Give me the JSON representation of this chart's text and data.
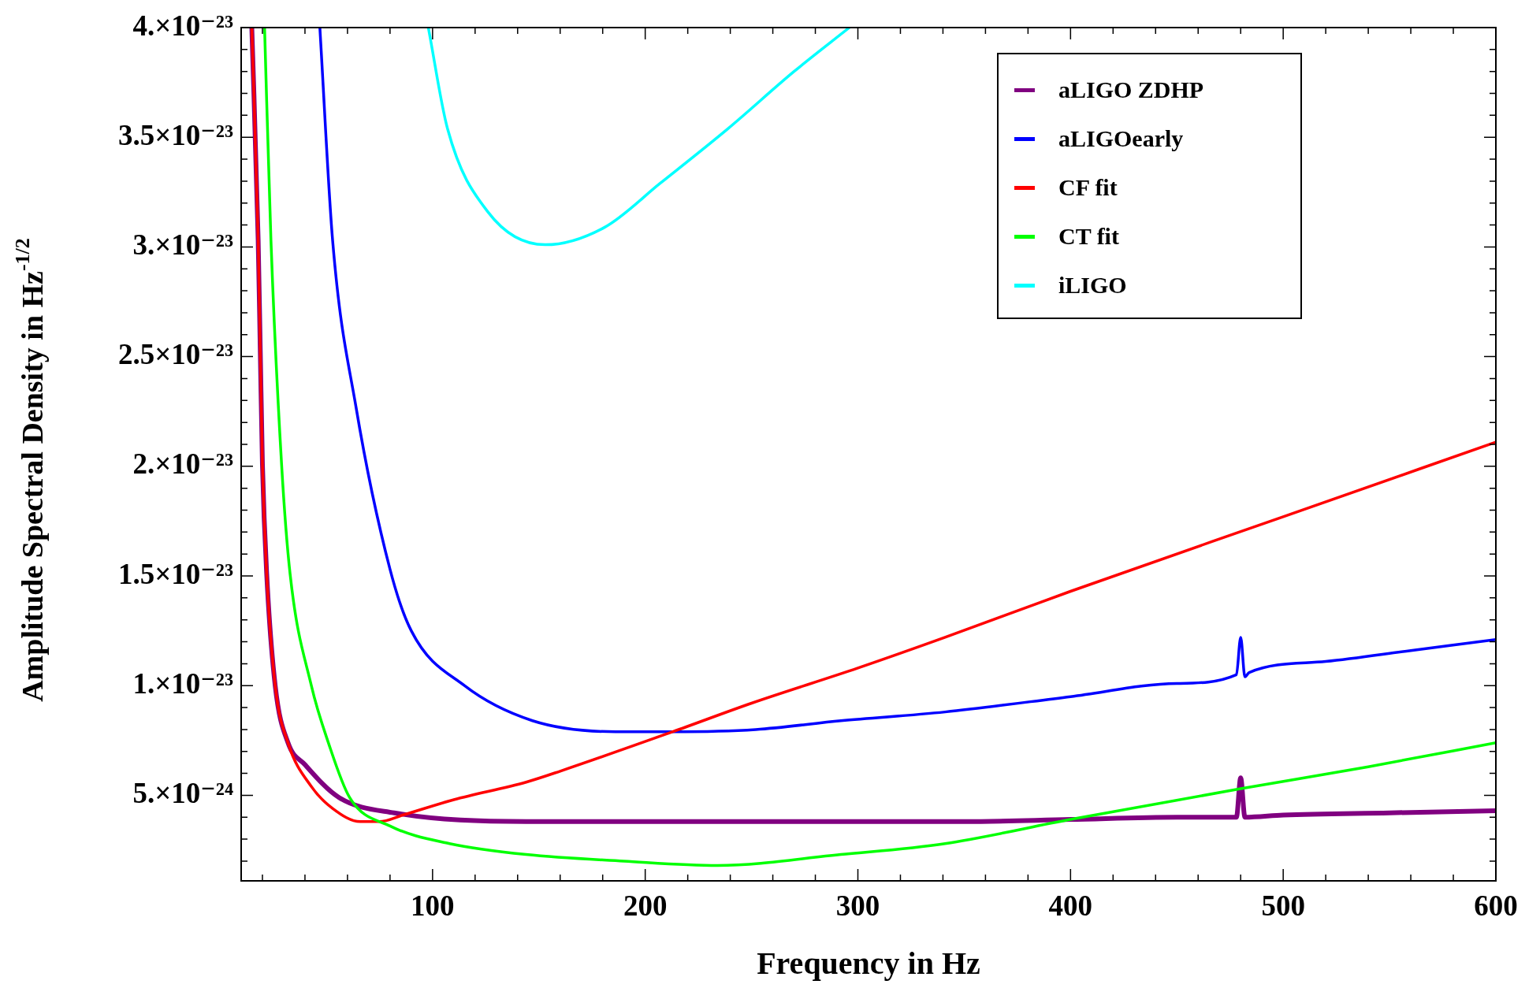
{
  "chart_data": {
    "type": "line",
    "xlabel": "Frequency in Hz",
    "ylabel": "Amplitude Spectral Density in Hz$^{-1/2}$",
    "xlim": [
      10,
      600
    ],
    "xticks": [
      {
        "value": 20,
        "label": null
      },
      {
        "value": 40,
        "label": null
      },
      {
        "value": 60,
        "label": null
      },
      {
        "value": 80,
        "label": null
      },
      100,
      {
        "value": 120,
        "label": null
      },
      {
        "value": 140,
        "label": null
      },
      {
        "value": 160,
        "label": null
      },
      {
        "value": 180,
        "label": null
      },
      200,
      {
        "value": 220,
        "label": null
      },
      {
        "value": 240,
        "label": null
      },
      {
        "value": 260,
        "label": null
      },
      {
        "value": 280,
        "label": null
      },
      300,
      {
        "value": 320,
        "label": null
      },
      {
        "value": 340,
        "label": null
      },
      {
        "value": 360,
        "label": null
      },
      {
        "value": 380,
        "label": null
      },
      400,
      {
        "value": 420,
        "label": null
      },
      {
        "value": 440,
        "label": null
      },
      {
        "value": 460,
        "label": null
      },
      {
        "value": 480,
        "label": null
      },
      500,
      {
        "value": 520,
        "label": null
      },
      {
        "value": 540,
        "label": null
      },
      {
        "value": 560,
        "label": null
      },
      {
        "value": 580,
        "label": null
      },
      600
    ],
    "ylim": [
      1.1e-24,
      4e-23
    ],
    "yticks": [
      {
        "value": 2e-24,
        "label": null
      },
      {
        "value": 3e-24,
        "label": null
      },
      {
        "value": 4e-24,
        "label": null
      },
      {
        "value": 5e-24,
        "label": "5.×10⁻²⁴"
      },
      {
        "value": 6e-24,
        "label": null
      },
      {
        "value": 7e-24,
        "label": null
      },
      {
        "value": 8e-24,
        "label": null
      },
      {
        "value": 9e-24,
        "label": null
      },
      {
        "value": 1e-23,
        "label": "1.×10⁻²³"
      },
      {
        "value": 1.1e-23,
        "label": null
      },
      {
        "value": 1.2e-23,
        "label": null
      },
      {
        "value": 1.3e-23,
        "label": null
      },
      {
        "value": 1.4e-23,
        "label": null
      },
      {
        "value": 1.5e-23,
        "label": "1.5×10⁻²³"
      },
      {
        "value": 1.6e-23,
        "label": null
      },
      {
        "value": 1.7e-23,
        "label": null
      },
      {
        "value": 1.8e-23,
        "label": null
      },
      {
        "value": 1.9e-23,
        "label": null
      },
      {
        "value": 2e-23,
        "label": "2.×10⁻²³"
      },
      {
        "value": 2.1e-23,
        "label": null
      },
      {
        "value": 2.2e-23,
        "label": null
      },
      {
        "value": 2.3e-23,
        "label": null
      },
      {
        "value": 2.4e-23,
        "label": null
      },
      {
        "value": 2.5e-23,
        "label": "2.5×10⁻²³"
      },
      {
        "value": 2.6e-23,
        "label": null
      },
      {
        "value": 2.7e-23,
        "label": null
      },
      {
        "value": 2.8e-23,
        "label": null
      },
      {
        "value": 2.9e-23,
        "label": null
      },
      {
        "value": 3e-23,
        "label": "3.×10⁻²³"
      },
      {
        "value": 3.1e-23,
        "label": null
      },
      {
        "value": 3.2e-23,
        "label": null
      },
      {
        "value": 3.3e-23,
        "label": null
      },
      {
        "value": 3.4e-23,
        "label": null
      },
      {
        "value": 3.5e-23,
        "label": "3.5×10⁻²³"
      },
      {
        "value": 3.6e-23,
        "label": null
      },
      {
        "value": 3.7e-23,
        "label": null
      },
      {
        "value": 3.8e-23,
        "label": null
      },
      {
        "value": 3.9e-23,
        "label": null
      },
      {
        "value": 4e-23,
        "label": "4.×10⁻²³"
      }
    ],
    "grid": false,
    "legend": "top right",
    "marker": "none",
    "line_style": "solid",
    "series": [
      {
        "name": "aLIGO ZDHP",
        "color": "#800080",
        "x": [
          15,
          18,
          19,
          20,
          22,
          26,
          32,
          40,
          56,
          82,
          144,
          200,
          250,
          300,
          350,
          400,
          450,
          478,
          480,
          482,
          500,
          550,
          600
        ],
        "values": [
          4e-23,
          3.03e-23,
          2.52e-23,
          2.01e-23,
          1.51e-23,
          1e-23,
          7.4e-24,
          6.4e-24,
          4.9e-24,
          4.2e-24,
          3.8e-24,
          3.8e-24,
          3.8e-24,
          3.8e-24,
          3.8e-24,
          3.9e-24,
          4e-24,
          4e-24,
          5.8e-24,
          4e-24,
          4.1e-24,
          4.2e-24,
          4.3e-24
        ]
      },
      {
        "name": "aLIGOearly",
        "color": "#0000ff",
        "x": [
          47,
          53,
          64,
          80,
          90,
          115,
          147,
          186,
          213,
          252,
          292,
          341,
          400,
          450,
          478,
          480,
          482,
          484,
          520,
          560,
          600
        ],
        "values": [
          4e-23,
          3.03e-23,
          2.27e-23,
          1.53e-23,
          1.25e-23,
          1e-23,
          8.4e-24,
          7.9e-24,
          7.9e-24,
          8e-24,
          8.4e-24,
          8.8e-24,
          9.5e-24,
          1.01e-23,
          1.05e-23,
          1.22e-23,
          1.04e-23,
          1.06e-23,
          1.11e-23,
          1.16e-23,
          1.21e-23
        ]
      },
      {
        "name": "CF fit",
        "color": "#ff0000",
        "x": [
          15,
          18,
          19,
          20,
          22,
          26,
          32,
          43,
          53,
          66,
          75,
          86,
          110,
          144,
          160,
          213,
          250,
          300,
          341,
          400,
          500,
          600
        ],
        "values": [
          4e-23,
          3.03e-23,
          2.52e-23,
          2.01e-23,
          1.51e-23,
          1e-23,
          7.4e-24,
          5.4e-24,
          4.4e-24,
          3.8e-24,
          3.8e-24,
          4.1e-24,
          4.8e-24,
          5.6e-24,
          6.1e-24,
          7.9e-24,
          9.2e-24,
          1.08e-23,
          1.22e-23,
          1.43e-23,
          1.77e-23,
          2.11e-23
        ]
      },
      {
        "name": "CT fit",
        "color": "#00ff00",
        "x": [
          21,
          24,
          29,
          33,
          43,
          51,
          61,
          80,
          108,
          144,
          190,
          234,
          292,
          341,
          400,
          480,
          540,
          600
        ],
        "values": [
          4e-23,
          3.03e-23,
          2.01e-23,
          1.51e-23,
          1e-23,
          7.4e-24,
          4.9e-24,
          3.6e-24,
          2.8e-24,
          2.3e-24,
          2e-24,
          1.8e-24,
          2.3e-24,
          2.8e-24,
          3.9e-24,
          5.3e-24,
          6.3e-24,
          7.4e-24
        ]
      },
      {
        "name": "iLIGO",
        "color": "#00ffff",
        "x": [
          98,
          107,
          126,
          153,
          181,
          207,
          239,
          270,
          296
        ],
        "values": [
          4e-23,
          3.54e-23,
          3.16e-23,
          3.01e-23,
          3.09e-23,
          3.29e-23,
          3.54e-23,
          3.8e-23,
          4e-23
        ]
      }
    ]
  }
}
